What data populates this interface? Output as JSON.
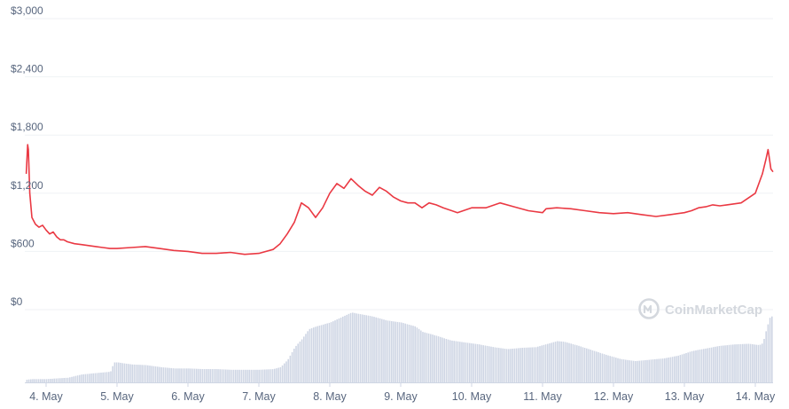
{
  "chart_data": {
    "type": "line",
    "y_axis": {
      "ticks": [
        0,
        600,
        1200,
        1800,
        2400,
        3000
      ],
      "tick_labels": [
        "$0",
        "$600",
        "$1,200",
        "$1,800",
        "$2,400",
        "$3,000"
      ],
      "range": [
        0,
        3000
      ]
    },
    "x_axis": {
      "range": [
        3.7,
        14.25
      ],
      "ticks": [
        4,
        5,
        6,
        7,
        8,
        9,
        10,
        11,
        12,
        13,
        14
      ],
      "tick_labels": [
        "4. May",
        "5. May",
        "6. May",
        "7. May",
        "8. May",
        "9. May",
        "10. May",
        "11. May",
        "12. May",
        "13. May",
        "14. May"
      ]
    },
    "grid": true,
    "series": [
      {
        "kind": "price",
        "color": "#ea3943",
        "x": [
          3.72,
          3.74,
          3.75,
          3.77,
          3.8,
          3.85,
          3.9,
          3.95,
          4.0,
          4.05,
          4.1,
          4.15,
          4.2,
          4.25,
          4.3,
          4.4,
          4.5,
          4.6,
          4.7,
          4.8,
          4.9,
          5.0,
          5.2,
          5.4,
          5.6,
          5.8,
          6.0,
          6.2,
          6.4,
          6.6,
          6.8,
          7.0,
          7.2,
          7.3,
          7.4,
          7.5,
          7.6,
          7.7,
          7.8,
          7.9,
          8.0,
          8.1,
          8.2,
          8.3,
          8.4,
          8.5,
          8.6,
          8.7,
          8.8,
          8.9,
          9.0,
          9.1,
          9.2,
          9.3,
          9.4,
          9.5,
          9.6,
          9.8,
          10.0,
          10.2,
          10.4,
          10.6,
          10.8,
          11.0,
          11.05,
          11.2,
          11.4,
          11.6,
          11.8,
          12.0,
          12.2,
          12.4,
          12.6,
          12.8,
          13.0,
          13.1,
          13.2,
          13.3,
          13.4,
          13.5,
          13.6,
          13.8,
          14.0,
          14.1,
          14.15,
          14.18,
          14.2,
          14.22,
          14.25
        ],
        "y": [
          1400,
          1700,
          1650,
          1200,
          950,
          880,
          850,
          870,
          820,
          780,
          800,
          750,
          720,
          720,
          700,
          680,
          670,
          660,
          650,
          640,
          630,
          630,
          640,
          650,
          630,
          610,
          600,
          580,
          580,
          590,
          570,
          580,
          620,
          680,
          780,
          900,
          1100,
          1050,
          950,
          1050,
          1200,
          1300,
          1250,
          1350,
          1280,
          1220,
          1180,
          1260,
          1220,
          1160,
          1120,
          1100,
          1100,
          1050,
          1100,
          1080,
          1050,
          1000,
          1050,
          1050,
          1100,
          1060,
          1020,
          1000,
          1040,
          1050,
          1040,
          1020,
          1000,
          990,
          1000,
          980,
          960,
          980,
          1000,
          1020,
          1050,
          1060,
          1080,
          1070,
          1080,
          1100,
          1200,
          1400,
          1550,
          1650,
          1550,
          1450,
          1420
        ]
      },
      {
        "kind": "volume",
        "color": "#cfd6e4",
        "x": [
          3.72,
          3.8,
          4.0,
          4.3,
          4.5,
          4.7,
          4.9,
          4.95,
          5.0,
          5.2,
          5.4,
          5.6,
          5.8,
          6.0,
          6.2,
          6.4,
          6.6,
          6.8,
          7.0,
          7.2,
          7.3,
          7.4,
          7.5,
          7.6,
          7.7,
          7.8,
          8.0,
          8.2,
          8.3,
          8.4,
          8.6,
          8.7,
          8.8,
          9.0,
          9.2,
          9.3,
          9.5,
          9.7,
          9.9,
          10.1,
          10.3,
          10.5,
          10.7,
          10.9,
          11.0,
          11.1,
          11.2,
          11.3,
          11.5,
          11.7,
          11.9,
          12.1,
          12.3,
          12.5,
          12.7,
          12.9,
          13.1,
          13.3,
          13.5,
          13.7,
          13.9,
          14.05,
          14.1,
          14.15,
          14.2,
          14.25
        ],
        "y": [
          4,
          5,
          5,
          7,
          12,
          14,
          16,
          30,
          30,
          27,
          26,
          23,
          21,
          21,
          20,
          20,
          19,
          19,
          19,
          20,
          23,
          34,
          53,
          65,
          80,
          84,
          90,
          100,
          105,
          103,
          99,
          96,
          93,
          90,
          84,
          76,
          70,
          63,
          60,
          57,
          53,
          50,
          52,
          53,
          56,
          59,
          62,
          61,
          55,
          48,
          41,
          35,
          32,
          34,
          36,
          40,
          47,
          51,
          55,
          57,
          58,
          56,
          59,
          80,
          98,
          100
        ]
      }
    ]
  },
  "watermark": {
    "text": "CoinMarketCap"
  }
}
